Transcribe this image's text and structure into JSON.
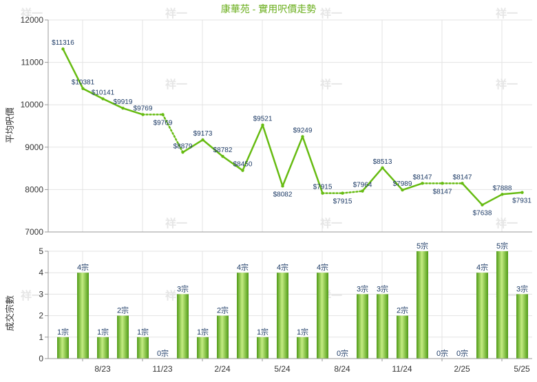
{
  "chart_data": [
    {
      "type": "line",
      "title": "康華苑 - 實用呎價走勢",
      "ylabel": "平均呎價",
      "ylim": [
        7000,
        12000
      ],
      "yticks": [
        "7000",
        "8000",
        "9000",
        "10000",
        "11000",
        "12000"
      ],
      "grid": true,
      "series": [
        {
          "values": [
            11316,
            10381,
            10141,
            9919,
            9769,
            9769,
            8879,
            9173,
            8782,
            8450,
            9521,
            8082,
            9249,
            7915,
            7915,
            7964,
            8513,
            7989,
            8147,
            8147,
            8147,
            7638,
            7888,
            7931
          ],
          "labels": [
            "$11316",
            "$10381",
            "$10141",
            "$9919",
            "$9769",
            "$9769",
            "$8879",
            "$9173",
            "$8782",
            "$8450",
            "$9521",
            "$8082",
            "$9249",
            "$7915",
            "$7915",
            "$7964",
            "$8513",
            "$7989",
            "$8147",
            "$8147",
            "$8147",
            "$7638",
            "$7888",
            "$7931"
          ],
          "estimated": [
            false,
            false,
            false,
            false,
            false,
            true,
            false,
            false,
            false,
            false,
            false,
            false,
            false,
            false,
            true,
            false,
            false,
            false,
            false,
            true,
            false,
            false,
            false,
            false
          ]
        }
      ],
      "colors": {
        "line": "#66bb11",
        "dotted": "#66bb11"
      },
      "watermark": "祥一"
    },
    {
      "type": "bar",
      "ylabel": "成交宗數",
      "ylim": [
        0,
        5
      ],
      "yticks": [
        "0",
        "1",
        "2",
        "3",
        "4",
        "5"
      ],
      "xticks": [
        "8/23",
        "11/23",
        "2/24",
        "5/24",
        "8/24",
        "11/24",
        "2/25",
        "5/25"
      ],
      "grid": true,
      "values": [
        1,
        4,
        1,
        2,
        1,
        0,
        3,
        1,
        2,
        4,
        1,
        4,
        1,
        4,
        0,
        3,
        3,
        2,
        5,
        0,
        0,
        4,
        5,
        3
      ],
      "labels": [
        "1宗",
        "4宗",
        "1宗",
        "2宗",
        "1宗",
        "0宗",
        "3宗",
        "1宗",
        "2宗",
        "4宗",
        "1宗",
        "4宗",
        "1宗",
        "4宗",
        "0宗",
        "3宗",
        "3宗",
        "2宗",
        "5宗",
        "0宗",
        "0宗",
        "4宗",
        "5宗",
        "3宗"
      ],
      "colors": {
        "bar_dark": "#4f9a16",
        "bar_light": "#c4ec82"
      }
    }
  ]
}
